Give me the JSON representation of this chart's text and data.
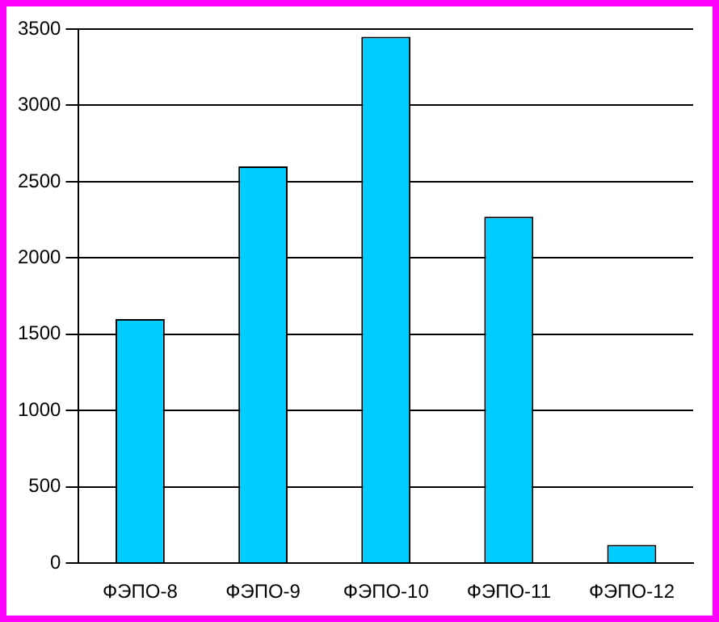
{
  "chart_data": {
    "type": "bar",
    "categories": [
      "ФЭПО-8",
      "ФЭПО-9",
      "ФЭПО-10",
      "ФЭПО-11",
      "ФЭПО-12"
    ],
    "values": [
      1600,
      2600,
      3450,
      2270,
      120
    ],
    "color": "#00ccff",
    "ylim": [
      0,
      3500
    ],
    "yticks": [
      0,
      500,
      1000,
      1500,
      2000,
      2500,
      3000,
      3500
    ],
    "grid": "y",
    "legend": false
  }
}
